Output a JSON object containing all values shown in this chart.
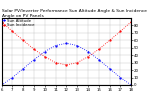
{
  "title": "Solar PV/Inverter Performance Sun Altitude Angle & Sun Incidence Angle on PV Panels",
  "legend_labels": [
    "Sun Altitude",
    "Sun Incidence"
  ],
  "x_hours": [
    6,
    7,
    8,
    9,
    10,
    11,
    12,
    13,
    14,
    15,
    16,
    17,
    18
  ],
  "sun_altitude": [
    0,
    10,
    22,
    34,
    45,
    53,
    56,
    53,
    45,
    34,
    22,
    10,
    0
  ],
  "sun_incidence": [
    85,
    72,
    60,
    48,
    38,
    30,
    27,
    30,
    38,
    48,
    60,
    72,
    85
  ],
  "ylim": [
    0,
    90
  ],
  "yticks": [
    0,
    10,
    20,
    30,
    40,
    50,
    60,
    70,
    80
  ],
  "xlim": [
    6,
    18
  ],
  "blue_color": "#0000ff",
  "red_color": "#ff0000",
  "bg_color": "#ffffff",
  "grid_color": "#aaaaaa",
  "title_fontsize": 3.2,
  "legend_fontsize": 2.8,
  "tick_fontsize": 2.8,
  "line_width": 0.6,
  "marker_size": 1.2
}
